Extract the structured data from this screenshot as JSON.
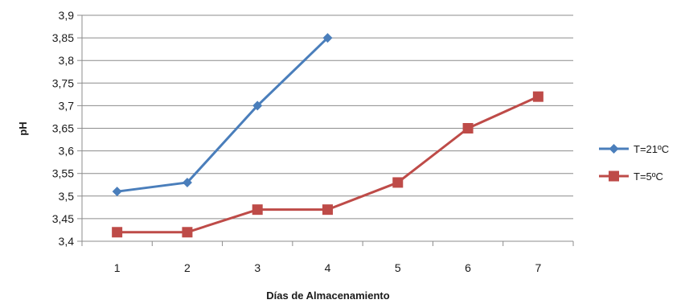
{
  "chart_data": {
    "type": "line",
    "xlabel": "Días de Almacenamiento",
    "ylabel": "pH",
    "categories": [
      "1",
      "2",
      "3",
      "4",
      "5",
      "6",
      "7"
    ],
    "y_ticks": [
      "3,4",
      "3,45",
      "3,5",
      "3,55",
      "3,6",
      "3,65",
      "3,7",
      "3,75",
      "3,8",
      "3,85",
      "3,9"
    ],
    "ylim": [
      3.4,
      3.9
    ],
    "grid": "horizontal",
    "legend_position": "right",
    "series": [
      {
        "name": "T=21ºC",
        "color": "#4a7ebb",
        "marker": "diamond",
        "values": [
          3.51,
          3.53,
          3.7,
          3.85,
          null,
          null,
          null
        ]
      },
      {
        "name": "T=5ºC",
        "color": "#be4b48",
        "marker": "square",
        "values": [
          3.42,
          3.42,
          3.47,
          3.47,
          3.53,
          3.65,
          3.72
        ]
      }
    ]
  }
}
